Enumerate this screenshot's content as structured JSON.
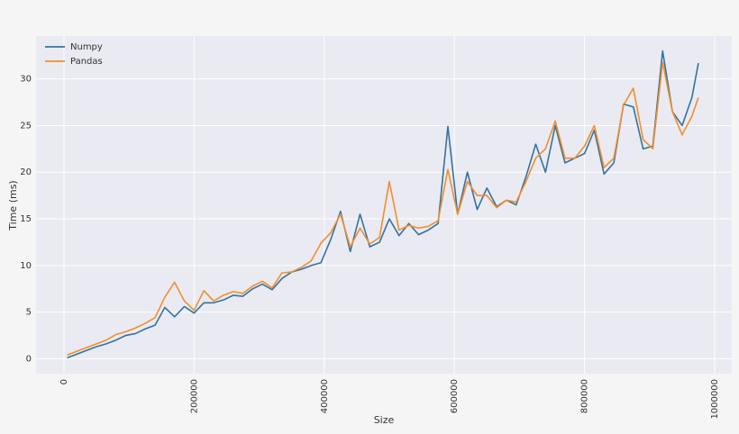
{
  "chart_data": {
    "type": "line",
    "xlabel": "Size",
    "ylabel": "Time (ms)",
    "x": [
      5000,
      20000,
      35000,
      50000,
      65000,
      80000,
      95000,
      110000,
      125000,
      140000,
      155000,
      170000,
      185000,
      200000,
      215000,
      230000,
      245000,
      260000,
      275000,
      290000,
      305000,
      320000,
      335000,
      350000,
      365000,
      380000,
      395000,
      410000,
      425000,
      440000,
      455000,
      470000,
      485000,
      500000,
      515000,
      530000,
      545000,
      560000,
      575000,
      590000,
      605000,
      620000,
      635000,
      650000,
      665000,
      680000,
      695000,
      710000,
      725000,
      740000,
      755000,
      770000,
      785000,
      800000,
      815000,
      830000,
      845000,
      860000,
      875000,
      890000,
      905000,
      920000,
      935000,
      950000,
      965000,
      975000
    ],
    "series": [
      {
        "name": "Numpy",
        "color": "#3274a1",
        "values": [
          0.1,
          0.5,
          0.9,
          1.3,
          1.6,
          2.0,
          2.5,
          2.7,
          3.2,
          3.6,
          5.5,
          4.5,
          5.6,
          4.9,
          6.0,
          6.0,
          6.3,
          6.8,
          6.7,
          7.5,
          8.0,
          7.4,
          8.6,
          9.3,
          9.6,
          10.0,
          10.3,
          12.8,
          15.8,
          11.5,
          15.5,
          12.0,
          12.5,
          15.0,
          13.2,
          14.5,
          13.3,
          13.8,
          14.5,
          24.9,
          15.5,
          20.0,
          16.0,
          18.3,
          16.3,
          17.0,
          16.5,
          19.5,
          23.0,
          20.0,
          25.0,
          21.0,
          21.5,
          22.0,
          24.5,
          19.8,
          21.0,
          27.3,
          27.0,
          22.5,
          22.8,
          33.0,
          26.5,
          25.0,
          28.0,
          31.7
        ]
      },
      {
        "name": "Pandas",
        "color": "#f28e2b",
        "values": [
          0.4,
          0.8,
          1.2,
          1.6,
          2.0,
          2.6,
          2.9,
          3.3,
          3.8,
          4.4,
          6.6,
          8.2,
          6.2,
          5.2,
          7.3,
          6.2,
          6.8,
          7.2,
          7.0,
          7.8,
          8.3,
          7.6,
          9.2,
          9.3,
          9.8,
          10.5,
          12.4,
          13.5,
          15.5,
          12.0,
          14.0,
          12.3,
          13.0,
          19.0,
          13.8,
          14.3,
          14.0,
          14.2,
          14.8,
          20.3,
          15.5,
          19.0,
          17.5,
          17.5,
          16.2,
          17.0,
          16.8,
          19.0,
          21.5,
          22.5,
          25.5,
          21.5,
          21.5,
          22.8,
          25.0,
          20.5,
          21.5,
          27.2,
          29.0,
          23.5,
          22.5,
          31.8,
          26.5,
          24.0,
          26.0,
          28.0
        ]
      }
    ],
    "xlim": [
      -42900,
      1026300
    ],
    "xticks": [
      0,
      200000,
      400000,
      600000,
      800000,
      1000000
    ],
    "ylim": [
      -1.6,
      34.6
    ],
    "yticks": [
      0,
      5,
      10,
      15,
      20,
      25,
      30
    ],
    "grid": true,
    "legend": "upper left"
  }
}
